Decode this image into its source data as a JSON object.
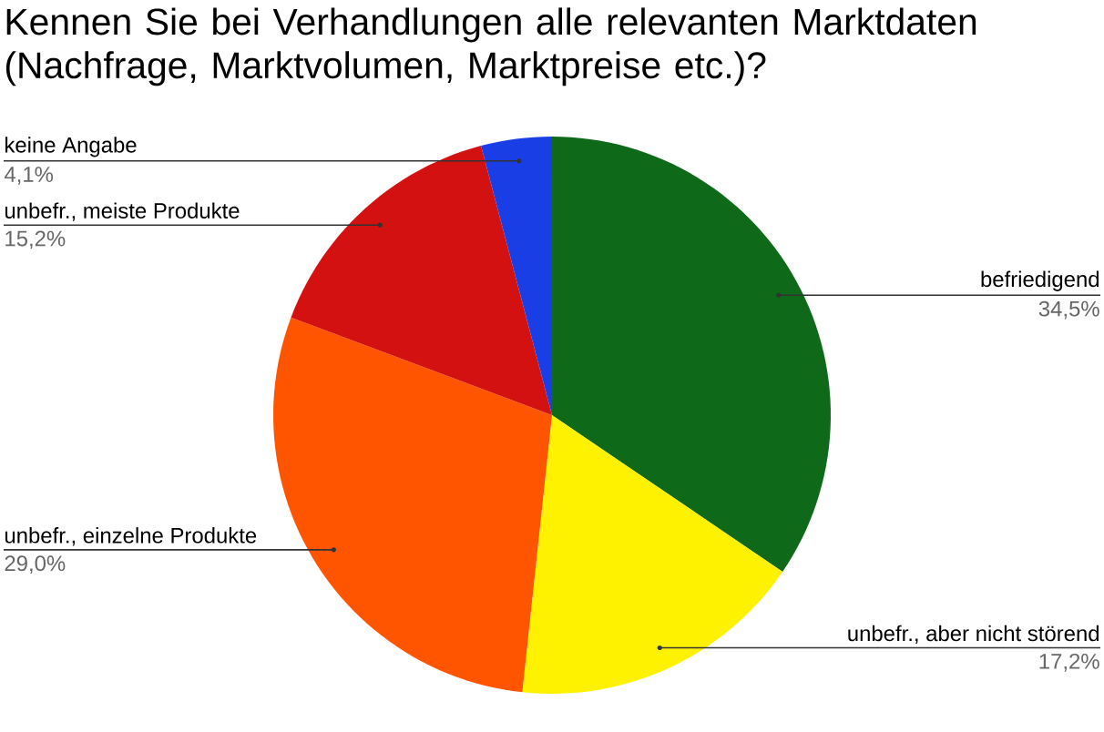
{
  "chart_data": {
    "type": "pie",
    "title": "Kennen Sie bei Verhandlungen alle relevanten Marktdaten (Nachfrage, Marktvolumen, Marktpreise etc.)?",
    "categories": [
      "befriedigend",
      "unbefr., aber nicht störend",
      "unbefr., einzelne Produkte",
      "unbefr., meiste Produkte",
      "keine Angabe"
    ],
    "values": [
      34.5,
      17.2,
      29.0,
      15.2,
      4.1
    ],
    "value_labels": [
      "34,5%",
      "17,2%",
      "29,0%",
      "15,2%",
      "4,1%"
    ],
    "colors": [
      "#0e6a18",
      "#fff200",
      "#ff5500",
      "#d41111",
      "#1a3ee6"
    ]
  }
}
